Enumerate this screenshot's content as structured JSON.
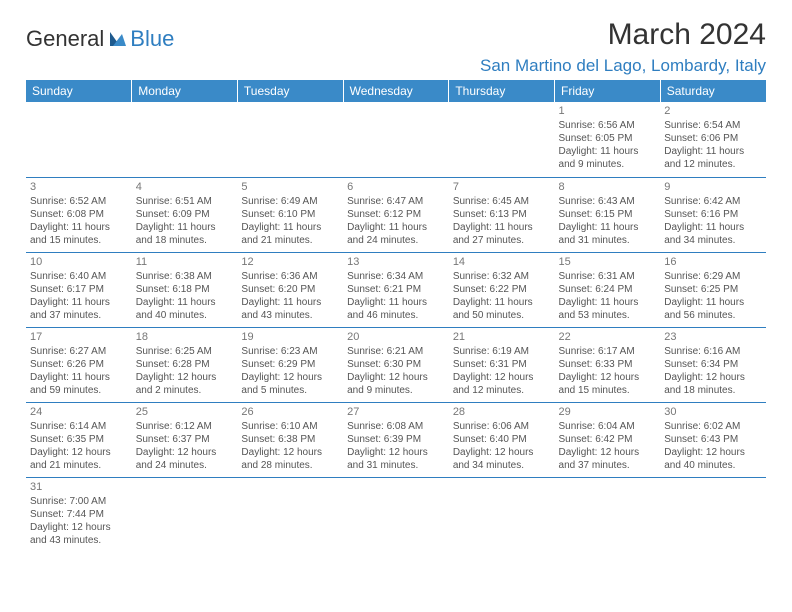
{
  "brand": {
    "part1": "General",
    "part2": "Blue"
  },
  "title": "March 2024",
  "location": "San Martino del Lago, Lombardy, Italy",
  "style": {
    "header_bg": "#3a8ac8",
    "header_text": "#ffffff",
    "accent": "#2f7ec0",
    "cell_border": "#2f7ec0",
    "text_color": "#555555",
    "daynum_color": "#777777",
    "title_color": "#333333",
    "title_fontsize": 30,
    "location_fontsize": 17,
    "dayheader_fontsize": 12,
    "cell_fontsize": 10
  },
  "day_headers": [
    "Sunday",
    "Monday",
    "Tuesday",
    "Wednesday",
    "Thursday",
    "Friday",
    "Saturday"
  ],
  "weeks": [
    [
      null,
      null,
      null,
      null,
      null,
      {
        "n": "1",
        "sr": "Sunrise: 6:56 AM",
        "ss": "Sunset: 6:05 PM",
        "d1": "Daylight: 11 hours",
        "d2": "and 9 minutes."
      },
      {
        "n": "2",
        "sr": "Sunrise: 6:54 AM",
        "ss": "Sunset: 6:06 PM",
        "d1": "Daylight: 11 hours",
        "d2": "and 12 minutes."
      }
    ],
    [
      {
        "n": "3",
        "sr": "Sunrise: 6:52 AM",
        "ss": "Sunset: 6:08 PM",
        "d1": "Daylight: 11 hours",
        "d2": "and 15 minutes."
      },
      {
        "n": "4",
        "sr": "Sunrise: 6:51 AM",
        "ss": "Sunset: 6:09 PM",
        "d1": "Daylight: 11 hours",
        "d2": "and 18 minutes."
      },
      {
        "n": "5",
        "sr": "Sunrise: 6:49 AM",
        "ss": "Sunset: 6:10 PM",
        "d1": "Daylight: 11 hours",
        "d2": "and 21 minutes."
      },
      {
        "n": "6",
        "sr": "Sunrise: 6:47 AM",
        "ss": "Sunset: 6:12 PM",
        "d1": "Daylight: 11 hours",
        "d2": "and 24 minutes."
      },
      {
        "n": "7",
        "sr": "Sunrise: 6:45 AM",
        "ss": "Sunset: 6:13 PM",
        "d1": "Daylight: 11 hours",
        "d2": "and 27 minutes."
      },
      {
        "n": "8",
        "sr": "Sunrise: 6:43 AM",
        "ss": "Sunset: 6:15 PM",
        "d1": "Daylight: 11 hours",
        "d2": "and 31 minutes."
      },
      {
        "n": "9",
        "sr": "Sunrise: 6:42 AM",
        "ss": "Sunset: 6:16 PM",
        "d1": "Daylight: 11 hours",
        "d2": "and 34 minutes."
      }
    ],
    [
      {
        "n": "10",
        "sr": "Sunrise: 6:40 AM",
        "ss": "Sunset: 6:17 PM",
        "d1": "Daylight: 11 hours",
        "d2": "and 37 minutes."
      },
      {
        "n": "11",
        "sr": "Sunrise: 6:38 AM",
        "ss": "Sunset: 6:18 PM",
        "d1": "Daylight: 11 hours",
        "d2": "and 40 minutes."
      },
      {
        "n": "12",
        "sr": "Sunrise: 6:36 AM",
        "ss": "Sunset: 6:20 PM",
        "d1": "Daylight: 11 hours",
        "d2": "and 43 minutes."
      },
      {
        "n": "13",
        "sr": "Sunrise: 6:34 AM",
        "ss": "Sunset: 6:21 PM",
        "d1": "Daylight: 11 hours",
        "d2": "and 46 minutes."
      },
      {
        "n": "14",
        "sr": "Sunrise: 6:32 AM",
        "ss": "Sunset: 6:22 PM",
        "d1": "Daylight: 11 hours",
        "d2": "and 50 minutes."
      },
      {
        "n": "15",
        "sr": "Sunrise: 6:31 AM",
        "ss": "Sunset: 6:24 PM",
        "d1": "Daylight: 11 hours",
        "d2": "and 53 minutes."
      },
      {
        "n": "16",
        "sr": "Sunrise: 6:29 AM",
        "ss": "Sunset: 6:25 PM",
        "d1": "Daylight: 11 hours",
        "d2": "and 56 minutes."
      }
    ],
    [
      {
        "n": "17",
        "sr": "Sunrise: 6:27 AM",
        "ss": "Sunset: 6:26 PM",
        "d1": "Daylight: 11 hours",
        "d2": "and 59 minutes."
      },
      {
        "n": "18",
        "sr": "Sunrise: 6:25 AM",
        "ss": "Sunset: 6:28 PM",
        "d1": "Daylight: 12 hours",
        "d2": "and 2 minutes."
      },
      {
        "n": "19",
        "sr": "Sunrise: 6:23 AM",
        "ss": "Sunset: 6:29 PM",
        "d1": "Daylight: 12 hours",
        "d2": "and 5 minutes."
      },
      {
        "n": "20",
        "sr": "Sunrise: 6:21 AM",
        "ss": "Sunset: 6:30 PM",
        "d1": "Daylight: 12 hours",
        "d2": "and 9 minutes."
      },
      {
        "n": "21",
        "sr": "Sunrise: 6:19 AM",
        "ss": "Sunset: 6:31 PM",
        "d1": "Daylight: 12 hours",
        "d2": "and 12 minutes."
      },
      {
        "n": "22",
        "sr": "Sunrise: 6:17 AM",
        "ss": "Sunset: 6:33 PM",
        "d1": "Daylight: 12 hours",
        "d2": "and 15 minutes."
      },
      {
        "n": "23",
        "sr": "Sunrise: 6:16 AM",
        "ss": "Sunset: 6:34 PM",
        "d1": "Daylight: 12 hours",
        "d2": "and 18 minutes."
      }
    ],
    [
      {
        "n": "24",
        "sr": "Sunrise: 6:14 AM",
        "ss": "Sunset: 6:35 PM",
        "d1": "Daylight: 12 hours",
        "d2": "and 21 minutes."
      },
      {
        "n": "25",
        "sr": "Sunrise: 6:12 AM",
        "ss": "Sunset: 6:37 PM",
        "d1": "Daylight: 12 hours",
        "d2": "and 24 minutes."
      },
      {
        "n": "26",
        "sr": "Sunrise: 6:10 AM",
        "ss": "Sunset: 6:38 PM",
        "d1": "Daylight: 12 hours",
        "d2": "and 28 minutes."
      },
      {
        "n": "27",
        "sr": "Sunrise: 6:08 AM",
        "ss": "Sunset: 6:39 PM",
        "d1": "Daylight: 12 hours",
        "d2": "and 31 minutes."
      },
      {
        "n": "28",
        "sr": "Sunrise: 6:06 AM",
        "ss": "Sunset: 6:40 PM",
        "d1": "Daylight: 12 hours",
        "d2": "and 34 minutes."
      },
      {
        "n": "29",
        "sr": "Sunrise: 6:04 AM",
        "ss": "Sunset: 6:42 PM",
        "d1": "Daylight: 12 hours",
        "d2": "and 37 minutes."
      },
      {
        "n": "30",
        "sr": "Sunrise: 6:02 AM",
        "ss": "Sunset: 6:43 PM",
        "d1": "Daylight: 12 hours",
        "d2": "and 40 minutes."
      }
    ],
    [
      {
        "n": "31",
        "sr": "Sunrise: 7:00 AM",
        "ss": "Sunset: 7:44 PM",
        "d1": "Daylight: 12 hours",
        "d2": "and 43 minutes."
      },
      null,
      null,
      null,
      null,
      null,
      null
    ]
  ]
}
